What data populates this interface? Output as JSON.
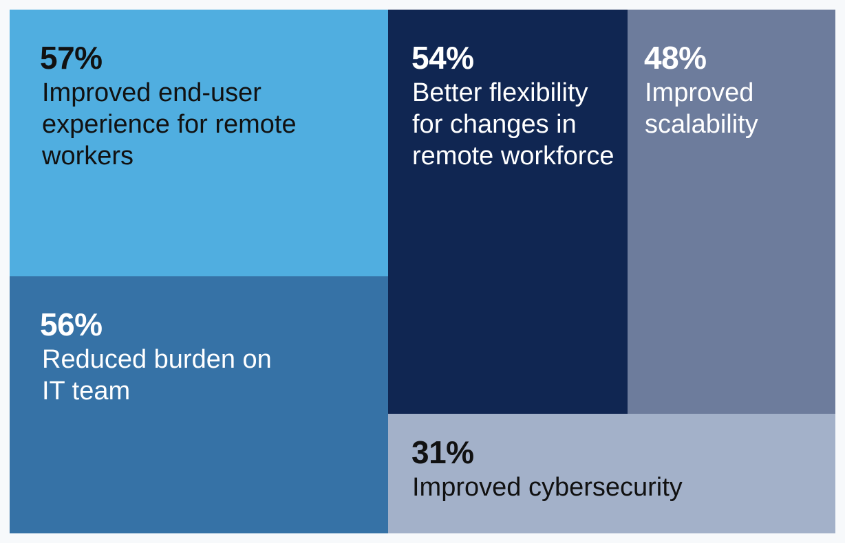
{
  "chart_data": {
    "type": "treemap",
    "title": "",
    "unit": "%",
    "items": [
      {
        "value": 57,
        "pct_label": "57%",
        "label": "Improved end-user experience for remote workers",
        "color": "#50aee0",
        "text_color": "#111111"
      },
      {
        "value": 56,
        "pct_label": "56%",
        "label": "Reduced burden on IT team",
        "color": "#3672a6",
        "text_color": "#ffffff"
      },
      {
        "value": 54,
        "pct_label": "54%",
        "label": "Better flexibility for changes in remote workforce",
        "color": "#102652",
        "text_color": "#ffffff"
      },
      {
        "value": 48,
        "pct_label": "48%",
        "label": "Improved scalability",
        "color": "#6d7c9c",
        "text_color": "#ffffff"
      },
      {
        "value": 31,
        "pct_label": "31%",
        "label": "Improved cybersecurity",
        "color": "#a3b1c9",
        "text_color": "#111111"
      }
    ]
  }
}
